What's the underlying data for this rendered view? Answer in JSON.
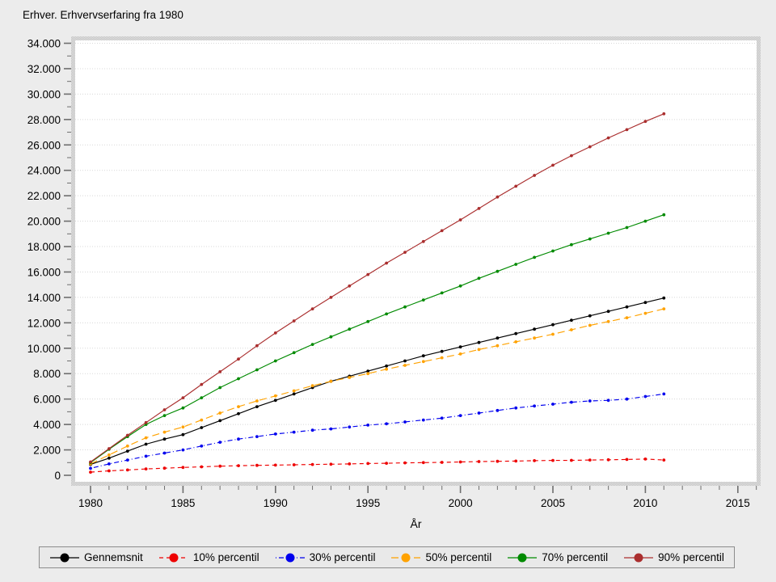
{
  "title": "Erhver. Erhvervserfaring fra 1980",
  "colors": {
    "background": "#ececec",
    "plot_background": "#ffffff",
    "frame_dither_dark": "#c3c3c3",
    "frame_dither_light": "#e2e2e2",
    "gridline": "#d8d8d8",
    "tick": "#6e6e6e",
    "text": "#000000",
    "legend_background": "#e9e9e9",
    "legend_border": "#8c8c8c"
  },
  "chart_data": {
    "type": "line",
    "title": "Erhver. Erhvervserfaring fra 1980",
    "xlabel": "År",
    "ylabel": "",
    "grid": "horizontal dotted lines at major y ticks",
    "legend_position": "bottom",
    "xlim": [
      1979.2,
      2016.2
    ],
    "ylim": [
      0,
      34500
    ],
    "x_axis": {
      "title": "År",
      "major_ticks": [
        1980,
        1985,
        1990,
        1995,
        2000,
        2005,
        2010,
        2015
      ],
      "major_tick_labels": [
        "1980",
        "1985",
        "1990",
        "1995",
        "2000",
        "2005",
        "2010",
        "2015"
      ],
      "minor_tick_step_years": 1
    },
    "y_axis": {
      "major_tick_values": [
        0,
        2000,
        4000,
        6000,
        8000,
        10000,
        12000,
        14000,
        16000,
        18000,
        20000,
        22000,
        24000,
        26000,
        28000,
        30000,
        32000,
        34000
      ],
      "major_tick_labels": [
        "0",
        "2.000",
        "4.000",
        "6.000",
        "8.000",
        "10.000",
        "12.000",
        "14.000",
        "16.000",
        "18.000",
        "20.000",
        "22.000",
        "24.000",
        "26.000",
        "28.000",
        "30.000",
        "32.000",
        "34.000"
      ],
      "minor_tick_step": 1000
    },
    "x": [
      1980,
      1981,
      1982,
      1983,
      1984,
      1985,
      1986,
      1987,
      1988,
      1989,
      1990,
      1991,
      1992,
      1993,
      1994,
      1995,
      1996,
      1997,
      1998,
      1999,
      2000,
      2001,
      2002,
      2003,
      2004,
      2005,
      2006,
      2007,
      2008,
      2009,
      2010,
      2011
    ],
    "series": [
      {
        "name": "Gennemsnit",
        "color": "#000000",
        "line_style": "solid",
        "values": [
          850,
          1350,
          1900,
          2450,
          2850,
          3200,
          3750,
          4300,
          4850,
          5400,
          5900,
          6400,
          6900,
          7400,
          7800,
          8200,
          8600,
          9000,
          9400,
          9750,
          10100,
          10450,
          10800,
          11150,
          11500,
          11850,
          12200,
          12550,
          12900,
          13250,
          13600,
          13950
        ]
      },
      {
        "name": "10% percentil",
        "color": "#ee0000",
        "line_style": "dash",
        "values": [
          250,
          350,
          420,
          500,
          560,
          620,
          670,
          720,
          760,
          780,
          800,
          830,
          850,
          870,
          900,
          930,
          950,
          980,
          1000,
          1020,
          1050,
          1080,
          1100,
          1120,
          1150,
          1170,
          1180,
          1200,
          1220,
          1250,
          1280,
          1200
        ]
      },
      {
        "name": "30% percentil",
        "color": "#0000ee",
        "line_style": "dash-dot",
        "values": [
          550,
          900,
          1200,
          1500,
          1750,
          2000,
          2300,
          2600,
          2850,
          3050,
          3250,
          3400,
          3550,
          3650,
          3800,
          3950,
          4050,
          4200,
          4350,
          4500,
          4700,
          4900,
          5100,
          5300,
          5450,
          5600,
          5750,
          5850,
          5900,
          6000,
          6200,
          6400
        ]
      },
      {
        "name": "50% percentil",
        "color": "#ffa200",
        "line_style": "long-dash",
        "values": [
          900,
          1600,
          2300,
          2950,
          3400,
          3800,
          4350,
          4900,
          5400,
          5850,
          6250,
          6650,
          7050,
          7400,
          7700,
          8000,
          8350,
          8650,
          8950,
          9250,
          9550,
          9900,
          10200,
          10500,
          10800,
          11100,
          11450,
          11800,
          12100,
          12400,
          12750,
          13100
        ]
      },
      {
        "name": "70% percentil",
        "color": "#008a00",
        "line_style": "solid",
        "values": [
          1000,
          2050,
          3050,
          4000,
          4700,
          5300,
          6100,
          6900,
          7600,
          8300,
          9000,
          9650,
          10300,
          10900,
          11500,
          12100,
          12700,
          13250,
          13800,
          14350,
          14900,
          15500,
          16050,
          16600,
          17150,
          17650,
          18150,
          18600,
          19050,
          19500,
          20000,
          20500
        ]
      },
      {
        "name": "90% percentil",
        "color": "#aa2e2e",
        "line_style": "solid",
        "values": [
          1050,
          2100,
          3150,
          4150,
          5150,
          6100,
          7150,
          8150,
          9150,
          10200,
          11200,
          12150,
          13100,
          14000,
          14900,
          15800,
          16700,
          17550,
          18400,
          19250,
          20100,
          21000,
          21900,
          22750,
          23600,
          24400,
          25150,
          25850,
          26550,
          27200,
          27850,
          28450
        ]
      }
    ]
  }
}
